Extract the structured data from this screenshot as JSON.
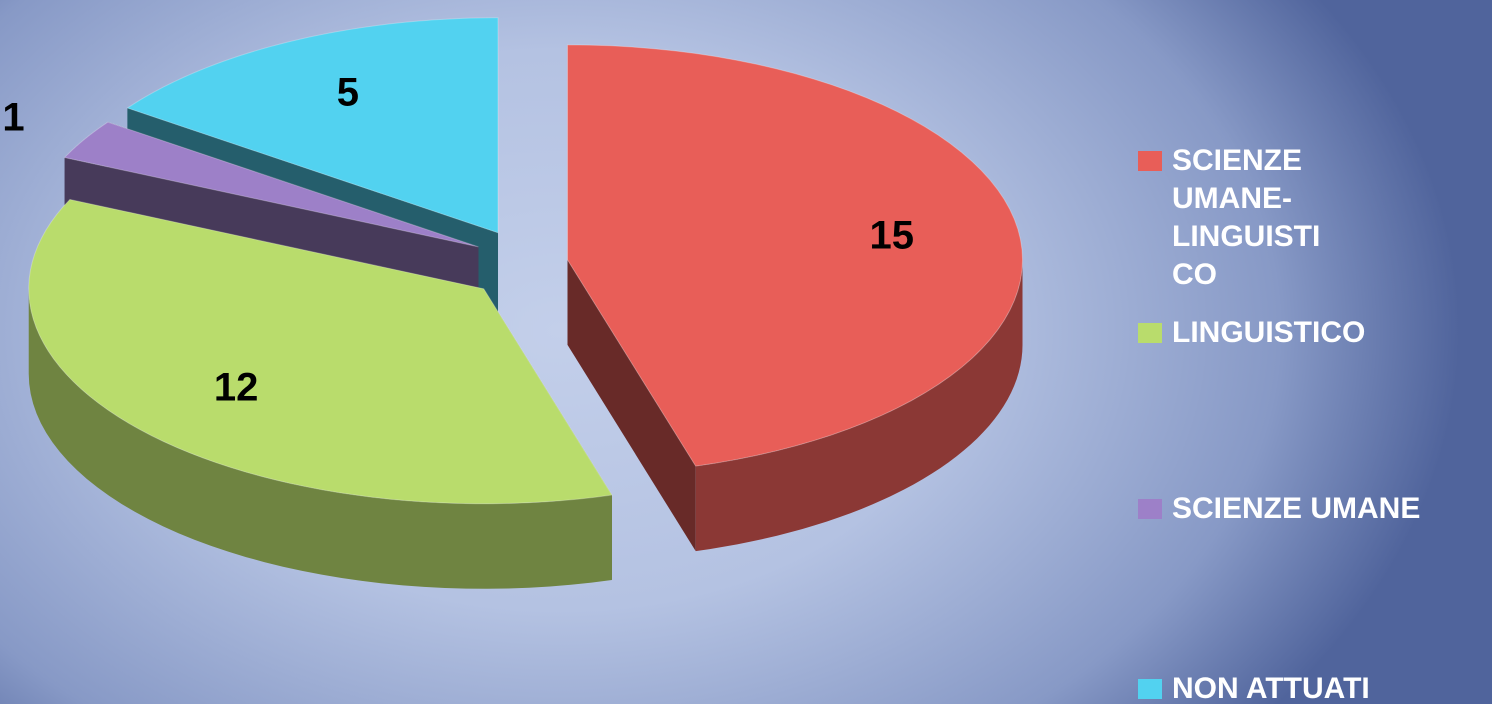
{
  "chart_data": {
    "type": "pie",
    "categories": [
      "SCIENZE UMANE-LINGUISTICO",
      "LINGUISTICO",
      "SCIENZE UMANE",
      "NON ATTUATI"
    ],
    "values": [
      15,
      12,
      1,
      5
    ],
    "colors": [
      "#e85e58",
      "#b9dc6c",
      "#9d80c8",
      "#52d2f0"
    ],
    "legend": "right"
  }
}
